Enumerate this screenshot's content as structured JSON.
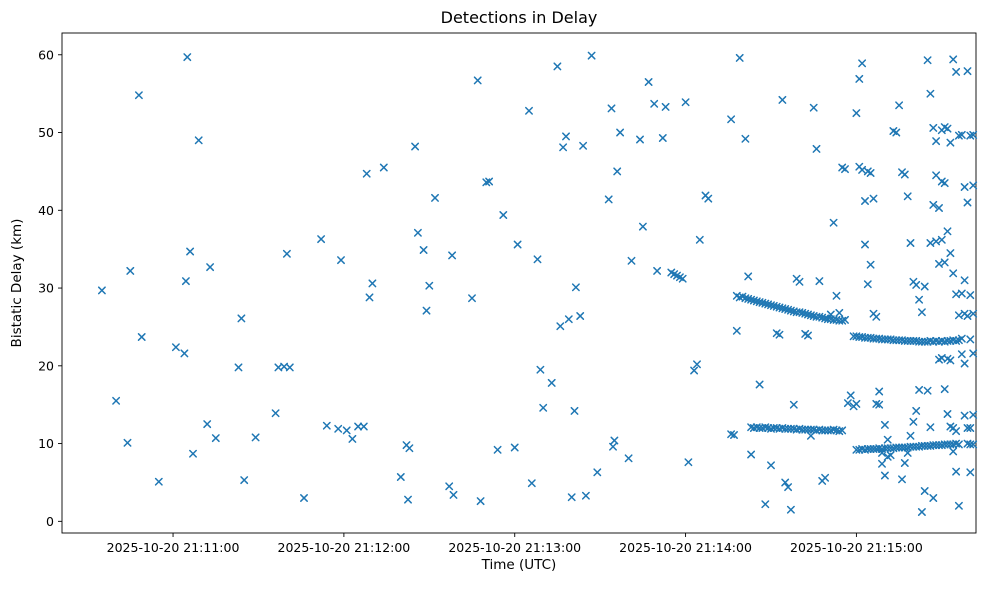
{
  "chart_data": {
    "type": "scatter",
    "title": "Detections in Delay",
    "xlabel": "Time (UTC)",
    "ylabel": "Bistatic Delay (km)",
    "marker": "x",
    "marker_color": "#1f77b4",
    "grid": false,
    "legend": "none",
    "x_encoding": "seconds after 2025-10-20 21:10:00 UTC",
    "xlim": [
      21,
      342
    ],
    "ylim": [
      -1.5,
      62.8
    ],
    "xticks": [
      {
        "t": 60,
        "label": "2025-10-20 21:11:00"
      },
      {
        "t": 120,
        "label": "2025-10-20 21:12:00"
      },
      {
        "t": 180,
        "label": "2025-10-20 21:13:00"
      },
      {
        "t": 240,
        "label": "2025-10-20 21:14:00"
      },
      {
        "t": 300,
        "label": "2025-10-20 21:15:00"
      }
    ],
    "yticks": [
      0,
      10,
      20,
      30,
      40,
      50,
      60
    ],
    "points": [
      [
        35,
        29.7
      ],
      [
        40,
        15.5
      ],
      [
        44,
        10.1
      ],
      [
        45,
        32.2
      ],
      [
        48,
        54.8
      ],
      [
        49,
        23.7
      ],
      [
        55,
        5.1
      ],
      [
        61,
        22.4
      ],
      [
        64,
        21.6
      ],
      [
        64.5,
        30.9
      ],
      [
        65,
        59.7
      ],
      [
        66,
        34.7
      ],
      [
        67,
        8.7
      ],
      [
        69,
        49
      ],
      [
        72,
        12.5
      ],
      [
        73,
        32.7
      ],
      [
        75,
        10.7
      ],
      [
        83,
        19.8
      ],
      [
        84,
        26.1
      ],
      [
        85,
        5.3
      ],
      [
        89,
        10.8
      ],
      [
        96,
        13.9
      ],
      [
        97,
        19.8
      ],
      [
        99,
        19.9
      ],
      [
        100,
        34.4
      ],
      [
        101,
        19.8
      ],
      [
        106,
        3
      ],
      [
        112,
        36.3
      ],
      [
        114,
        12.3
      ],
      [
        118,
        11.9
      ],
      [
        119,
        33.6
      ],
      [
        121,
        11.7
      ],
      [
        123,
        10.6
      ],
      [
        125,
        12.2
      ],
      [
        127,
        12.2
      ],
      [
        128,
        44.7
      ],
      [
        129,
        28.8
      ],
      [
        130,
        30.6
      ],
      [
        134,
        45.5
      ],
      [
        140,
        5.7
      ],
      [
        142,
        9.8
      ],
      [
        142.5,
        2.8
      ],
      [
        143,
        9.4
      ],
      [
        145,
        48.2
      ],
      [
        146,
        37.1
      ],
      [
        148,
        34.9
      ],
      [
        149,
        27.1
      ],
      [
        150,
        30.3
      ],
      [
        152,
        41.6
      ],
      [
        157,
        4.5
      ],
      [
        158,
        34.2
      ],
      [
        158.5,
        3.4
      ],
      [
        165,
        28.7
      ],
      [
        167,
        56.7
      ],
      [
        168,
        2.6
      ],
      [
        170,
        43.6
      ],
      [
        171,
        43.7
      ],
      [
        174,
        9.2
      ],
      [
        176,
        39.4
      ],
      [
        180,
        9.5
      ],
      [
        181,
        35.6
      ],
      [
        185,
        52.8
      ],
      [
        186,
        4.9
      ],
      [
        188,
        33.7
      ],
      [
        189,
        19.5
      ],
      [
        190,
        14.6
      ],
      [
        193,
        17.8
      ],
      [
        195,
        58.5
      ],
      [
        196,
        25.1
      ],
      [
        197,
        48.1
      ],
      [
        198,
        49.5
      ],
      [
        199,
        26
      ],
      [
        200,
        3.1
      ],
      [
        201,
        14.2
      ],
      [
        201.5,
        30.1
      ],
      [
        203,
        26.4
      ],
      [
        204,
        48.3
      ],
      [
        205,
        3.3
      ],
      [
        207,
        59.9
      ],
      [
        209,
        6.3
      ],
      [
        213,
        41.4
      ],
      [
        214,
        53.1
      ],
      [
        214.5,
        9.6
      ],
      [
        215,
        10.4
      ],
      [
        216,
        45
      ],
      [
        217,
        50
      ],
      [
        220,
        8.1
      ],
      [
        221,
        33.5
      ],
      [
        224,
        49.1
      ],
      [
        225,
        37.9
      ],
      [
        227,
        56.5
      ],
      [
        229,
        53.7
      ],
      [
        230,
        32.2
      ],
      [
        232,
        49.3
      ],
      [
        233,
        53.3
      ],
      [
        235,
        32
      ],
      [
        236,
        31.8
      ],
      [
        237,
        31.6
      ],
      [
        238,
        31.4
      ],
      [
        239,
        31.2
      ],
      [
        240,
        53.9
      ],
      [
        241,
        7.6
      ],
      [
        243,
        19.4
      ],
      [
        244,
        20.2
      ],
      [
        245,
        36.2
      ],
      [
        247,
        41.9
      ],
      [
        248,
        41.5
      ],
      [
        256,
        11.2
      ],
      [
        257,
        11.1
      ],
      [
        258,
        29
      ],
      [
        259,
        28.8
      ],
      [
        260,
        28.9
      ],
      [
        261,
        28.7
      ],
      [
        262,
        28.6
      ],
      [
        263,
        28.5
      ],
      [
        264,
        28.4
      ],
      [
        265,
        28.3
      ],
      [
        266,
        28.2
      ],
      [
        267,
        28.1
      ],
      [
        268,
        28
      ],
      [
        269,
        27.9
      ],
      [
        270,
        27.8
      ],
      [
        271,
        27.7
      ],
      [
        272,
        27.6
      ],
      [
        273,
        27.5
      ],
      [
        274,
        27.4
      ],
      [
        275,
        27.3
      ],
      [
        276,
        27.2
      ],
      [
        277,
        27.1
      ],
      [
        278,
        27
      ],
      [
        279,
        26.9
      ],
      [
        280,
        26.9
      ],
      [
        281,
        26.8
      ],
      [
        282,
        26.7
      ],
      [
        283,
        26.6
      ],
      [
        284,
        26.5
      ],
      [
        285,
        26.4
      ],
      [
        286,
        26.3
      ],
      [
        287,
        26.3
      ],
      [
        288,
        26.2
      ],
      [
        289,
        26.1
      ],
      [
        290,
        26
      ],
      [
        291,
        26
      ],
      [
        292,
        25.9
      ],
      [
        293,
        25.9
      ],
      [
        294,
        25.8
      ],
      [
        295,
        25.8
      ],
      [
        296,
        25.9
      ],
      [
        299,
        23.8
      ],
      [
        300,
        23.8
      ],
      [
        301,
        23.7
      ],
      [
        302,
        23.7
      ],
      [
        303,
        23.6
      ],
      [
        304,
        23.6
      ],
      [
        305,
        23.6
      ],
      [
        306,
        23.5
      ],
      [
        307,
        23.5
      ],
      [
        308,
        23.5
      ],
      [
        309,
        23.4
      ],
      [
        310,
        23.4
      ],
      [
        311,
        23.4
      ],
      [
        312,
        23.4
      ],
      [
        313,
        23.3
      ],
      [
        314,
        23.3
      ],
      [
        315,
        23.3
      ],
      [
        316,
        23.3
      ],
      [
        317,
        23.2
      ],
      [
        318,
        23.2
      ],
      [
        319,
        23.2
      ],
      [
        320,
        23.2
      ],
      [
        321,
        23.2
      ],
      [
        322,
        23.1
      ],
      [
        323,
        23.1
      ],
      [
        324,
        23.1
      ],
      [
        325,
        23.1
      ],
      [
        326,
        23.2
      ],
      [
        327,
        23.1
      ],
      [
        328,
        23.2
      ],
      [
        329,
        23.1
      ],
      [
        330,
        23.2
      ],
      [
        331,
        23.1
      ],
      [
        332,
        23.2
      ],
      [
        333,
        23.2
      ],
      [
        334,
        23.3
      ],
      [
        335,
        23.2
      ],
      [
        336,
        23.3
      ],
      [
        263,
        12.1
      ],
      [
        264,
        12
      ],
      [
        265,
        12.1
      ],
      [
        266,
        12
      ],
      [
        267,
        12
      ],
      [
        268,
        12.1
      ],
      [
        269,
        12
      ],
      [
        270,
        11.9
      ],
      [
        271,
        12
      ],
      [
        272,
        12
      ],
      [
        273,
        11.9
      ],
      [
        274,
        12
      ],
      [
        275,
        11.9
      ],
      [
        276,
        11.9
      ],
      [
        277,
        11.9
      ],
      [
        278,
        11.9
      ],
      [
        279,
        11.8
      ],
      [
        280,
        11.9
      ],
      [
        281,
        11.8
      ],
      [
        282,
        11.8
      ],
      [
        283,
        11.8
      ],
      [
        284,
        11.8
      ],
      [
        285,
        11.8
      ],
      [
        286,
        11.7
      ],
      [
        287,
        11.8
      ],
      [
        288,
        11.7
      ],
      [
        289,
        11.7
      ],
      [
        290,
        11.7
      ],
      [
        291,
        11.7
      ],
      [
        292,
        11.8
      ],
      [
        293,
        11.7
      ],
      [
        294,
        11.6
      ],
      [
        295,
        11.7
      ],
      [
        300,
        9.2
      ],
      [
        301,
        9.2
      ],
      [
        302,
        9.3
      ],
      [
        303,
        9.2
      ],
      [
        304,
        9.3
      ],
      [
        305,
        9.3
      ],
      [
        306,
        9.3
      ],
      [
        307,
        9.3
      ],
      [
        308,
        9.4
      ],
      [
        309,
        9.3
      ],
      [
        310,
        9.4
      ],
      [
        311,
        9.4
      ],
      [
        312,
        9.4
      ],
      [
        313,
        9.4
      ],
      [
        314,
        9.5
      ],
      [
        315,
        9.5
      ],
      [
        316,
        9.5
      ],
      [
        317,
        9.5
      ],
      [
        318,
        9.5
      ],
      [
        319,
        9.6
      ],
      [
        320,
        9.6
      ],
      [
        321,
        9.6
      ],
      [
        322,
        9.6
      ],
      [
        323,
        9.7
      ],
      [
        324,
        9.7
      ],
      [
        325,
        9.7
      ],
      [
        326,
        9.7
      ],
      [
        327,
        9.8
      ],
      [
        328,
        9.8
      ],
      [
        329,
        9.8
      ],
      [
        330,
        9.8
      ],
      [
        331,
        9.9
      ],
      [
        332,
        9.9
      ],
      [
        333,
        9.9
      ],
      [
        334,
        9.9
      ],
      [
        335,
        10
      ],
      [
        336,
        9.9
      ],
      [
        256,
        51.7
      ],
      [
        259,
        59.6
      ],
      [
        261,
        49.2
      ],
      [
        258,
        24.5
      ],
      [
        262,
        31.5
      ],
      [
        263,
        8.6
      ],
      [
        266,
        17.6
      ],
      [
        268,
        2.2
      ],
      [
        270,
        7.2
      ],
      [
        272,
        24.2
      ],
      [
        273,
        24
      ],
      [
        274,
        54.2
      ],
      [
        275,
        5
      ],
      [
        276,
        4.4
      ],
      [
        277,
        1.5
      ],
      [
        278,
        15
      ],
      [
        279,
        31.2
      ],
      [
        280,
        30.8
      ],
      [
        282,
        24.1
      ],
      [
        283,
        23.9
      ],
      [
        284,
        11
      ],
      [
        285,
        53.2
      ],
      [
        286,
        47.9
      ],
      [
        287,
        30.9
      ],
      [
        288,
        5.2
      ],
      [
        289,
        5.6
      ],
      [
        291,
        26.6
      ],
      [
        292,
        38.4
      ],
      [
        293,
        29
      ],
      [
        294,
        26.8
      ],
      [
        295,
        45.5
      ],
      [
        296,
        45.3
      ],
      [
        297,
        15.2
      ],
      [
        298,
        16.2
      ],
      [
        299,
        14.8
      ],
      [
        300,
        15.1
      ],
      [
        301,
        45.6
      ],
      [
        302,
        45.2
      ],
      [
        303,
        41.2
      ],
      [
        304,
        45
      ],
      [
        305,
        44.8
      ],
      [
        306,
        41.5
      ],
      [
        307,
        15.1
      ],
      [
        308,
        15
      ],
      [
        309,
        8.8
      ],
      [
        310,
        12.4
      ],
      [
        311,
        10.5
      ],
      [
        312,
        8.5
      ],
      [
        300,
        52.5
      ],
      [
        301,
        56.9
      ],
      [
        302,
        58.9
      ],
      [
        303,
        35.6
      ],
      [
        304,
        30.5
      ],
      [
        305,
        33
      ],
      [
        306,
        26.7
      ],
      [
        307,
        26.3
      ],
      [
        308,
        16.7
      ],
      [
        309,
        7.4
      ],
      [
        310,
        5.9
      ],
      [
        311,
        8.3
      ],
      [
        313,
        50.2
      ],
      [
        314,
        50
      ],
      [
        315,
        53.5
      ],
      [
        316,
        44.9
      ],
      [
        317,
        44.6
      ],
      [
        318,
        41.8
      ],
      [
        319,
        35.8
      ],
      [
        320,
        30.8
      ],
      [
        321,
        30.4
      ],
      [
        322,
        28.5
      ],
      [
        323,
        1.2
      ],
      [
        324,
        3.9
      ],
      [
        325,
        59.3
      ],
      [
        326,
        55
      ],
      [
        327,
        50.6
      ],
      [
        328,
        48.9
      ],
      [
        329,
        40.3
      ],
      [
        330,
        36.2
      ],
      [
        331,
        33.3
      ],
      [
        332,
        20.9
      ],
      [
        333,
        20.7
      ],
      [
        334,
        12
      ],
      [
        335,
        11.6
      ],
      [
        336,
        2
      ],
      [
        325,
        16.8
      ],
      [
        326,
        12.1
      ],
      [
        327,
        3
      ],
      [
        328,
        36
      ],
      [
        329,
        33.1
      ],
      [
        330,
        43.7
      ],
      [
        331,
        43.5
      ],
      [
        332,
        37.3
      ],
      [
        333,
        34.5
      ],
      [
        334,
        31.9
      ],
      [
        335,
        29.2
      ],
      [
        336,
        26.5
      ],
      [
        337,
        21.5
      ],
      [
        338,
        13.6
      ],
      [
        339,
        10
      ],
      [
        340,
        6.3
      ],
      [
        336,
        49.6
      ],
      [
        337,
        49.7
      ],
      [
        338,
        43
      ],
      [
        339,
        41
      ],
      [
        340,
        29.1
      ],
      [
        341,
        26.7
      ],
      [
        335,
        57.8
      ],
      [
        334,
        59.4
      ],
      [
        333,
        48.7
      ],
      [
        332,
        50.5
      ],
      [
        337,
        23.5
      ],
      [
        338,
        20.3
      ],
      [
        339,
        12
      ],
      [
        340,
        9.9
      ],
      [
        341,
        43.2
      ],
      [
        330,
        50.3
      ],
      [
        331,
        50.7
      ],
      [
        328,
        44.5
      ],
      [
        327,
        40.7
      ],
      [
        326,
        35.8
      ],
      [
        324,
        30.2
      ],
      [
        323,
        26.9
      ],
      [
        322,
        16.9
      ],
      [
        321,
        14.2
      ],
      [
        320,
        12.8
      ],
      [
        319,
        11
      ],
      [
        318,
        8.8
      ],
      [
        317,
        7.5
      ],
      [
        316,
        5.4
      ],
      [
        329,
        20.8
      ],
      [
        330,
        21
      ],
      [
        331,
        17
      ],
      [
        332,
        13.8
      ],
      [
        333,
        12.2
      ],
      [
        334,
        9
      ],
      [
        335,
        6.4
      ],
      [
        339,
        57.9
      ],
      [
        340,
        49.6
      ],
      [
        341,
        49.7
      ],
      [
        338,
        31
      ],
      [
        337,
        29.3
      ],
      [
        340,
        23.4
      ],
      [
        341,
        21.6
      ],
      [
        339,
        26.4
      ],
      [
        338,
        26.7
      ],
      [
        341,
        9.9
      ],
      [
        340,
        12
      ],
      [
        341,
        13.7
      ]
    ]
  }
}
